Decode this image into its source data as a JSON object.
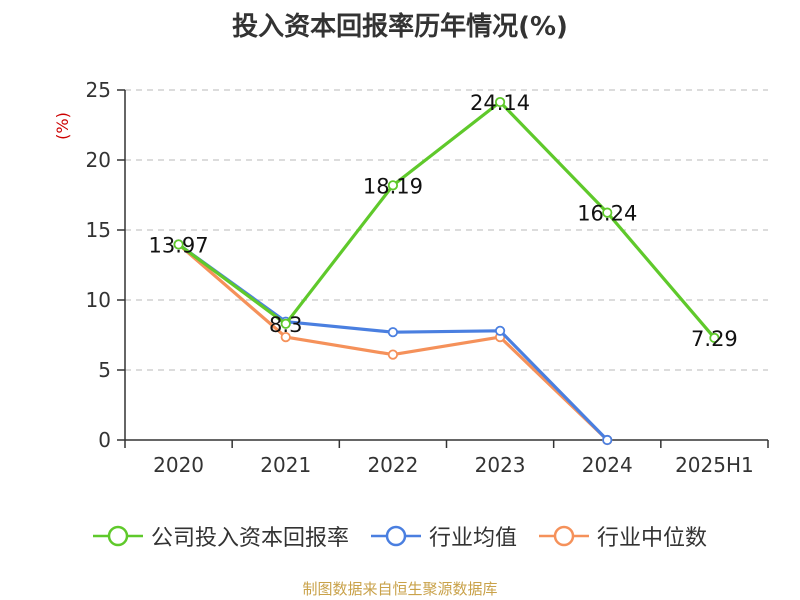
{
  "title": "投入资本回报率历年情况(%)",
  "source": "制图数据来自恒生聚源数据库",
  "colors": {
    "company": "#5fc92b",
    "industry_avg": "#4a7fe0",
    "industry_median": "#f5915a",
    "unit": "#cc0000",
    "source": "#c9a24a"
  },
  "chart_data": {
    "type": "line",
    "title": "投入资本回报率历年情况(%)",
    "ylabel": "(%)",
    "xlabel": "",
    "categories": [
      "2020",
      "2021",
      "2022",
      "2023",
      "2024",
      "2025H1"
    ],
    "ylim": [
      0,
      25
    ],
    "yticks": [
      0,
      5,
      10,
      15,
      20,
      25
    ],
    "grid": true,
    "legend_position": "bottom",
    "series": [
      {
        "name": "公司投入资本回报率",
        "color": "#5fc92b",
        "values": [
          13.97,
          8.3,
          18.19,
          24.14,
          16.24,
          7.29
        ],
        "labels": [
          "13.97",
          "8.3",
          "18.19",
          "24.14",
          "16.24",
          "7.29"
        ]
      },
      {
        "name": "行业均值",
        "color": "#4a7fe0",
        "values": [
          13.97,
          8.45,
          7.7,
          7.8,
          0,
          null
        ]
      },
      {
        "name": "行业中位数",
        "color": "#f5915a",
        "values": [
          13.97,
          7.35,
          6.1,
          7.35,
          0,
          null
        ]
      }
    ]
  }
}
